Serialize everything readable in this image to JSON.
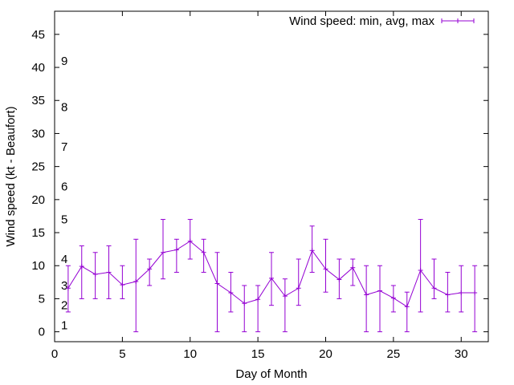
{
  "chart_data": {
    "type": "line",
    "title": "",
    "xlabel": "Day of Month",
    "ylabel": "Wind speed (kt - Beaufort)",
    "xlim": [
      0,
      32
    ],
    "ylim": [
      -1.5,
      48.5
    ],
    "xticks": [
      0,
      5,
      10,
      15,
      20,
      25,
      30
    ],
    "yticks": [
      0,
      5,
      10,
      15,
      20,
      25,
      30,
      35,
      40,
      45
    ],
    "grid": false,
    "legend_position": "top-right",
    "color": "#9400d3",
    "series": [
      {
        "name": "Wind speed: min, avg, max",
        "x": [
          1,
          2,
          3,
          4,
          5,
          6,
          7,
          8,
          9,
          10,
          11,
          12,
          13,
          14,
          15,
          16,
          17,
          18,
          19,
          20,
          21,
          22,
          23,
          24,
          25,
          26,
          27,
          28,
          29,
          30,
          31
        ],
        "avg": [
          6.6,
          9.9,
          8.7,
          9.0,
          7.1,
          7.6,
          9.5,
          12.0,
          12.4,
          13.7,
          12.0,
          7.3,
          5.9,
          4.3,
          4.9,
          8.1,
          5.4,
          6.6,
          12.3,
          9.5,
          7.9,
          9.7,
          5.6,
          6.2,
          5.1,
          3.8,
          9.3,
          6.6,
          5.6,
          5.9,
          5.9
        ],
        "min": [
          3,
          5,
          5,
          5,
          5,
          0,
          7,
          8,
          9,
          11,
          9,
          0,
          3,
          0,
          0,
          4,
          0,
          4,
          9,
          6,
          5,
          7,
          0,
          0,
          3,
          0,
          3,
          5,
          3,
          3,
          0
        ],
        "max": [
          10,
          13,
          12,
          13,
          10,
          14,
          11,
          17,
          14,
          17,
          14,
          12,
          9,
          7,
          7,
          12,
          8,
          11,
          16,
          14,
          11,
          11,
          10,
          10,
          7,
          6,
          17,
          11,
          9,
          10,
          10
        ]
      }
    ],
    "beaufort_scale": {
      "labels": [
        "1",
        "2",
        "3",
        "4",
        "5",
        "6",
        "7",
        "8",
        "9"
      ],
      "knots": [
        1,
        4,
        7,
        11,
        17,
        22,
        28,
        34,
        41
      ]
    }
  }
}
